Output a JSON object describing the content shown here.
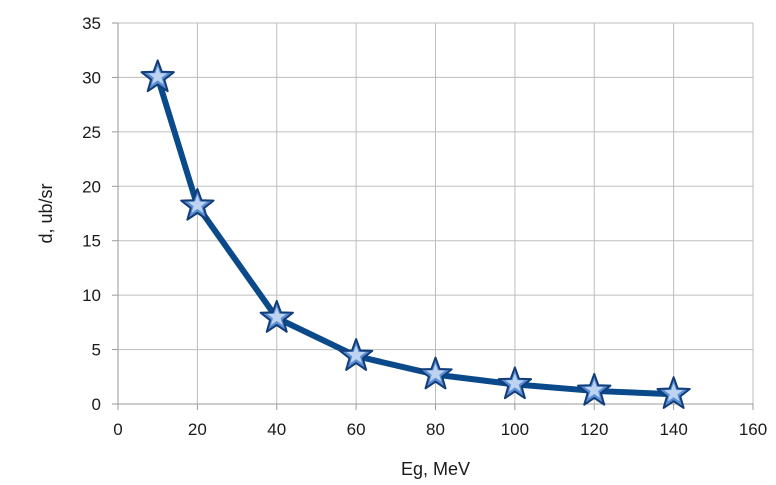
{
  "chart_data": {
    "type": "line",
    "title": "",
    "xlabel": "Eg, MeV",
    "ylabel": "d, ub/sr",
    "xlim": [
      0,
      160
    ],
    "ylim": [
      0,
      35
    ],
    "x_ticks": [
      0,
      20,
      40,
      60,
      80,
      100,
      120,
      140,
      160
    ],
    "y_ticks": [
      0,
      5,
      10,
      15,
      20,
      25,
      30,
      35
    ],
    "grid": true,
    "legend": "none",
    "series": [
      {
        "x": [
          10,
          20,
          40,
          60,
          80,
          100,
          120,
          140
        ],
        "y": [
          30,
          18.2,
          7.9,
          4.4,
          2.7,
          1.8,
          1.2,
          0.9
        ],
        "color": "#0a4a8a",
        "marker": "star",
        "marker_color": "#5a8fd6"
      }
    ]
  }
}
